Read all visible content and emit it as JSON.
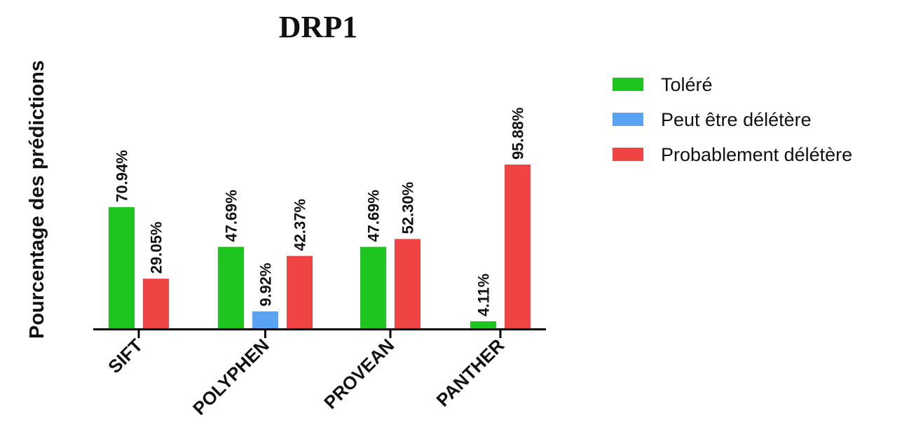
{
  "chart_data": {
    "type": "bar",
    "title": "DRP1",
    "ylabel": "Pourcentage des prédictions",
    "xlabel": "",
    "categories": [
      "SIFT",
      "POLYPHEN",
      "PROVEAN",
      "PANTHER"
    ],
    "series": [
      {
        "name": "Toléré",
        "color": "#1ec51e",
        "values": [
          70.94,
          47.69,
          47.69,
          4.11
        ],
        "labels": [
          "70.94%",
          "47.69%",
          "47.69%",
          "4.11%"
        ]
      },
      {
        "name": "Peut être délétère",
        "color": "#5aa2f2",
        "values": [
          null,
          9.92,
          null,
          null
        ],
        "labels": [
          null,
          "9.92%",
          null,
          null
        ]
      },
      {
        "name": "Probablement délétère",
        "color": "#f04444",
        "values": [
          29.05,
          42.37,
          52.3,
          95.88
        ],
        "labels": [
          "29.05%",
          "42.37%",
          "52.30%",
          "95.88%"
        ]
      }
    ],
    "ylim": [
      0,
      100
    ],
    "grid": false,
    "legend_position": "top-right"
  }
}
